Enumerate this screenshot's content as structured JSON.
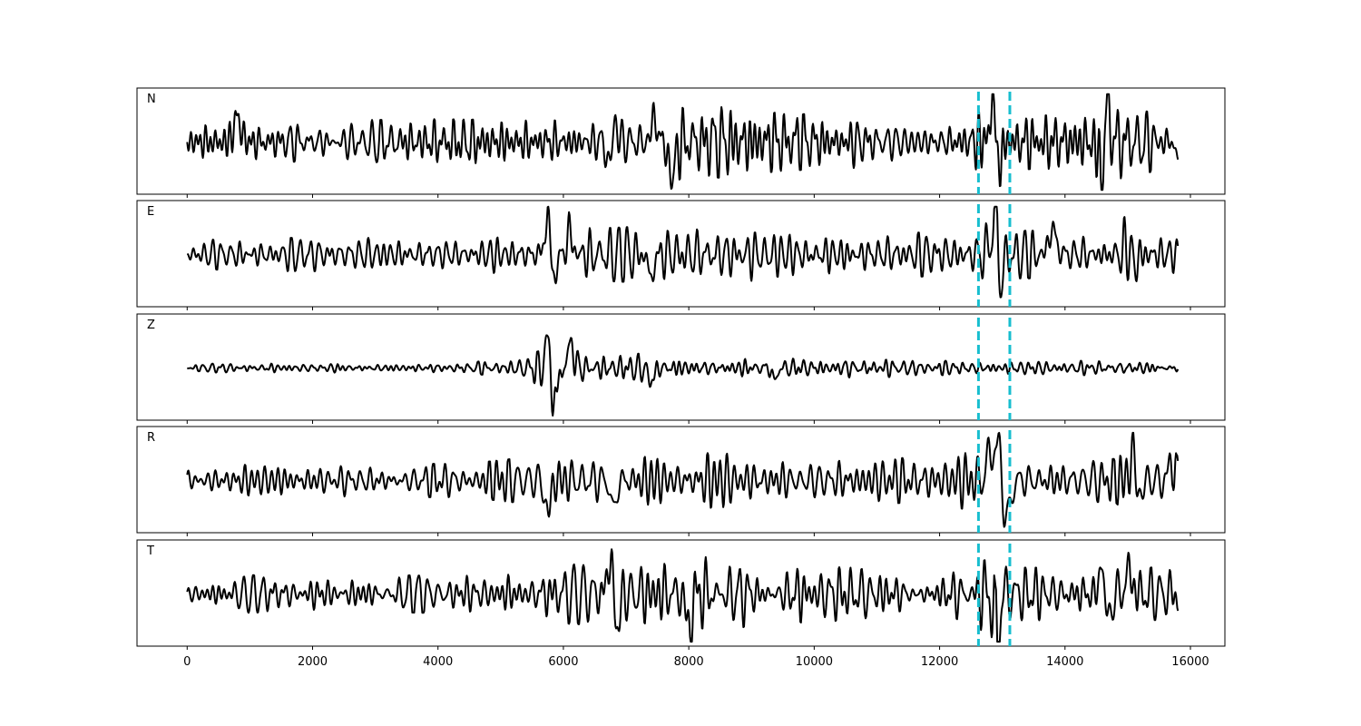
{
  "chart_data": {
    "type": "line",
    "title": "",
    "xlabel": "",
    "ylabel": "",
    "xlim": [
      -800,
      16550
    ],
    "x_ticks": [
      0,
      2000,
      4000,
      6000,
      8000,
      10000,
      12000,
      14000,
      16000
    ],
    "x_tick_labels": [
      "0",
      "2000",
      "4000",
      "6000",
      "8000",
      "10000",
      "12000",
      "14000",
      "16000"
    ],
    "n_samples": 15800,
    "grid": false,
    "pick_lines": {
      "color": "#17becf",
      "style": "dashed",
      "x": [
        12620,
        13120
      ]
    },
    "trace_color": "#000000",
    "panels": [
      {
        "label": "N",
        "descriptor": "waveform trace; peak excursions near 6800, 7700, 12800 and 14650",
        "envelope": [
          [
            0,
            0.35
          ],
          [
            700,
            0.45
          ],
          [
            800,
            0.6
          ],
          [
            900,
            0.45
          ],
          [
            1500,
            0.4
          ],
          [
            2300,
            0.45
          ],
          [
            4000,
            0.48
          ],
          [
            5500,
            0.45
          ],
          [
            6000,
            0.5
          ],
          [
            6500,
            0.6
          ],
          [
            6750,
            0.9
          ],
          [
            7000,
            0.65
          ],
          [
            7500,
            0.7
          ],
          [
            7700,
            0.85
          ],
          [
            8200,
            0.7
          ],
          [
            8500,
            0.75
          ],
          [
            9500,
            0.6
          ],
          [
            10500,
            0.55
          ],
          [
            11500,
            0.5
          ],
          [
            12200,
            0.55
          ],
          [
            12500,
            0.6
          ],
          [
            12800,
            0.95
          ],
          [
            13100,
            0.6
          ],
          [
            13600,
            0.55
          ],
          [
            14200,
            0.6
          ],
          [
            14650,
            0.9
          ],
          [
            15000,
            0.7
          ],
          [
            15500,
            0.6
          ],
          [
            15800,
            0.55
          ]
        ],
        "events": [
          [
            800,
            0.55,
            80
          ],
          [
            6750,
            -0.9,
            60
          ],
          [
            6800,
            0.8,
            60
          ],
          [
            7450,
            0.6,
            60
          ],
          [
            7730,
            -0.85,
            70
          ],
          [
            12850,
            0.95,
            60
          ],
          [
            12950,
            -0.6,
            60
          ],
          [
            14580,
            -0.85,
            60
          ],
          [
            14680,
            0.85,
            60
          ],
          [
            15800,
            -0.45,
            40
          ]
        ]
      },
      {
        "label": "E",
        "descriptor": "waveform trace; strong arrival near 5800 and 12880, late burst near 15100",
        "envelope": [
          [
            0,
            0.3
          ],
          [
            1500,
            0.35
          ],
          [
            3000,
            0.35
          ],
          [
            4500,
            0.35
          ],
          [
            5500,
            0.45
          ],
          [
            5750,
            0.8
          ],
          [
            6100,
            0.6
          ],
          [
            6600,
            0.55
          ],
          [
            7500,
            0.6
          ],
          [
            9000,
            0.55
          ],
          [
            10500,
            0.5
          ],
          [
            12000,
            0.45
          ],
          [
            12500,
            0.45
          ],
          [
            12880,
            0.9
          ],
          [
            13200,
            0.5
          ],
          [
            13800,
            0.5
          ],
          [
            14500,
            0.45
          ],
          [
            15000,
            0.7
          ],
          [
            15300,
            0.6
          ],
          [
            15800,
            0.45
          ]
        ],
        "events": [
          [
            5750,
            0.9,
            60
          ],
          [
            5850,
            -0.6,
            60
          ],
          [
            6100,
            0.55,
            60
          ],
          [
            7400,
            -0.55,
            60
          ],
          [
            12880,
            1.0,
            70
          ],
          [
            12980,
            -0.65,
            60
          ],
          [
            13800,
            0.6,
            80
          ],
          [
            15050,
            0.6,
            90
          ],
          [
            15080,
            -0.7,
            80
          ]
        ]
      },
      {
        "label": "Z",
        "descriptor": "waveform trace; impulsive arrival near 5750, quieter elsewhere",
        "envelope": [
          [
            0,
            0.05
          ],
          [
            500,
            0.1
          ],
          [
            2000,
            0.1
          ],
          [
            3500,
            0.1
          ],
          [
            4500,
            0.12
          ],
          [
            5300,
            0.2
          ],
          [
            5700,
            0.4
          ],
          [
            5800,
            0.6
          ],
          [
            6150,
            0.5
          ],
          [
            6400,
            0.2
          ],
          [
            6900,
            0.3
          ],
          [
            7400,
            0.3
          ],
          [
            8000,
            0.2
          ],
          [
            9000,
            0.2
          ],
          [
            10000,
            0.2
          ],
          [
            11000,
            0.2
          ],
          [
            12000,
            0.15
          ],
          [
            13000,
            0.15
          ],
          [
            14000,
            0.15
          ],
          [
            15000,
            0.15
          ],
          [
            15800,
            0.1
          ]
        ],
        "events": [
          [
            5760,
            1.0,
            50
          ],
          [
            5810,
            -0.7,
            50
          ],
          [
            6120,
            0.6,
            60
          ],
          [
            5880,
            -0.55,
            60
          ],
          [
            7400,
            -0.3,
            70
          ],
          [
            9370,
            -0.3,
            50
          ]
        ]
      },
      {
        "label": "R",
        "descriptor": "waveform trace; arrival near 5800, broad pulse near 12930, late burst near 15100",
        "envelope": [
          [
            0,
            0.3
          ],
          [
            1500,
            0.35
          ],
          [
            3000,
            0.35
          ],
          [
            4500,
            0.35
          ],
          [
            5500,
            0.5
          ],
          [
            5750,
            0.7
          ],
          [
            6500,
            0.55
          ],
          [
            7500,
            0.6
          ],
          [
            9000,
            0.55
          ],
          [
            10500,
            0.5
          ],
          [
            12000,
            0.45
          ],
          [
            12900,
            0.8
          ],
          [
            13300,
            0.45
          ],
          [
            14000,
            0.45
          ],
          [
            14800,
            0.45
          ],
          [
            15100,
            0.85
          ],
          [
            15400,
            0.6
          ],
          [
            15800,
            0.5
          ]
        ],
        "events": [
          [
            5750,
            -0.8,
            60
          ],
          [
            6800,
            -0.7,
            60
          ],
          [
            12800,
            0.55,
            80
          ],
          [
            12930,
            0.8,
            80
          ],
          [
            13070,
            -0.95,
            80
          ],
          [
            15100,
            0.9,
            70
          ],
          [
            15160,
            -0.7,
            70
          ],
          [
            15700,
            0.5,
            50
          ]
        ]
      },
      {
        "label": "T",
        "descriptor": "waveform trace; arrivals near 5700, 6800, 8000 and 12920, late pulse near 14650",
        "envelope": [
          [
            0,
            0.3
          ],
          [
            700,
            0.4
          ],
          [
            800,
            0.5
          ],
          [
            900,
            0.4
          ],
          [
            2000,
            0.35
          ],
          [
            4000,
            0.4
          ],
          [
            5500,
            0.45
          ],
          [
            5700,
            0.6
          ],
          [
            6500,
            0.65
          ],
          [
            6800,
            0.8
          ],
          [
            7500,
            0.7
          ],
          [
            8000,
            0.8
          ],
          [
            9000,
            0.7
          ],
          [
            10500,
            0.55
          ],
          [
            12000,
            0.55
          ],
          [
            12900,
            0.85
          ],
          [
            13200,
            0.55
          ],
          [
            14000,
            0.55
          ],
          [
            14650,
            0.85
          ],
          [
            15000,
            0.6
          ],
          [
            15800,
            0.5
          ]
        ],
        "events": [
          [
            6750,
            0.9,
            60
          ],
          [
            6850,
            -0.85,
            60
          ],
          [
            8000,
            -0.85,
            60
          ],
          [
            12920,
            -0.95,
            60
          ],
          [
            14600,
            0.8,
            60
          ],
          [
            14680,
            -0.8,
            60
          ],
          [
            15020,
            0.55,
            70
          ]
        ]
      }
    ]
  }
}
